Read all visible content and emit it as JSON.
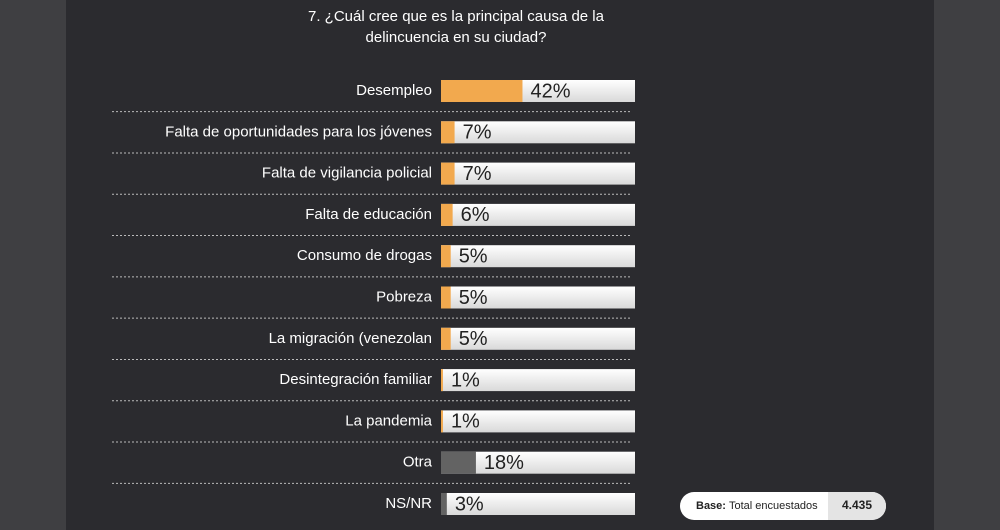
{
  "chart_data": {
    "type": "bar",
    "orientation": "horizontal",
    "title": "7. ¿Cuál cree que es la principal causa de la",
    "subtitle": "delincuencia en su ciudad?",
    "categories": [
      "Desempleo",
      "Falta de oportunidades para los jóvenes",
      "Falta de vigilancia policial",
      "Falta de educación",
      "Consumo de drogas",
      "Pobreza",
      "La migración (venezolan",
      "Desintegración familiar",
      "La pandemia",
      "Otra",
      "NS/NR"
    ],
    "values": [
      42,
      7,
      7,
      6,
      5,
      5,
      5,
      1,
      1,
      18,
      3
    ],
    "value_labels": [
      "42%",
      "7%",
      "7%",
      "6%",
      "5%",
      "5%",
      "5%",
      "1%",
      "1%",
      "18%",
      "3%"
    ],
    "colors": [
      "#f2a94e",
      "#f2a94e",
      "#f2a94e",
      "#f2a94e",
      "#f2a94e",
      "#f2a94e",
      "#f2a94e",
      "#f2a94e",
      "#f2a94e",
      "#636363",
      "#636363"
    ],
    "xlim": [
      0,
      100
    ],
    "note": {
      "label": "Base:",
      "text": "Total encuestados",
      "value": "4.435"
    }
  }
}
